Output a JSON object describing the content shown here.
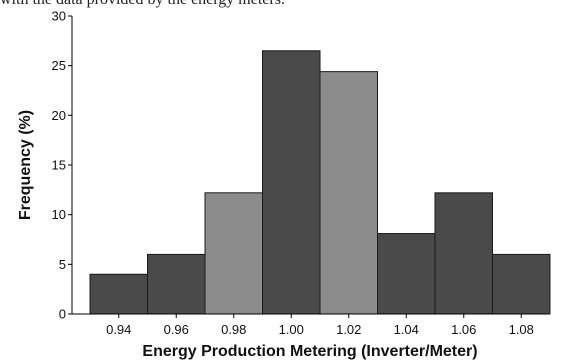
{
  "caption_fragment": "with the data provided by the energy meters.",
  "chart_data": {
    "type": "bar",
    "title": "",
    "xlabel": "Energy Production Metering (Inverter/Meter)",
    "ylabel": "Frequency (%)",
    "categories": [
      "0.94",
      "0.96",
      "0.98",
      "1.00",
      "1.02",
      "1.04",
      "1.06",
      "1.08"
    ],
    "values": [
      4,
      6,
      12.2,
      26.5,
      24.4,
      8.1,
      12.2,
      6
    ],
    "bar_colors": [
      "#4a4a4a",
      "#4a4a4a",
      "#8c8c8c",
      "#4a4a4a",
      "#8c8c8c",
      "#4a4a4a",
      "#4a4a4a",
      "#4a4a4a"
    ],
    "y_ticks": [
      "0",
      "5",
      "10",
      "15",
      "20",
      "25",
      "30"
    ],
    "ylim": [
      0,
      30
    ],
    "grid": false,
    "legend": "none"
  }
}
